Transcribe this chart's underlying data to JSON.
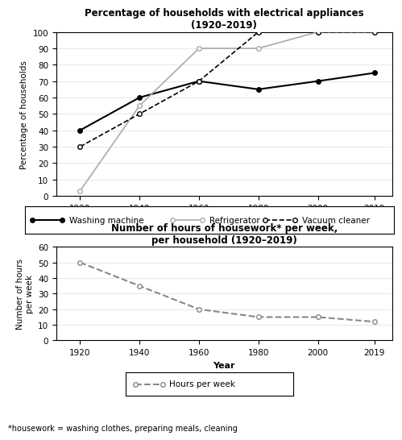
{
  "years": [
    1920,
    1940,
    1960,
    1980,
    2000,
    2019
  ],
  "washing_machine": [
    40,
    60,
    70,
    65,
    70,
    75
  ],
  "refrigerator": [
    3,
    55,
    90,
    90,
    100,
    100
  ],
  "vacuum_cleaner": [
    30,
    50,
    70,
    100,
    100,
    100
  ],
  "hours_per_week": [
    50,
    35,
    20,
    15,
    15,
    12
  ],
  "title1": "Percentage of households with electrical appliances\n(1920–2019)",
  "title2": "Number of hours of housework* per week,\nper household (1920–2019)",
  "ylabel1": "Percentage of households",
  "ylabel2": "Number of hours\nper week",
  "xlabel": "Year",
  "yticks1": [
    0,
    10,
    20,
    30,
    40,
    50,
    60,
    70,
    80,
    90,
    100
  ],
  "yticks2": [
    0,
    10,
    20,
    30,
    40,
    50,
    60
  ],
  "footnote": "*housework = washing clothes, preparing meals, cleaning",
  "legend1_labels": [
    "Washing machine",
    "Refrigerator",
    "Vacuum cleaner"
  ],
  "legend2_label": "Hours per week"
}
